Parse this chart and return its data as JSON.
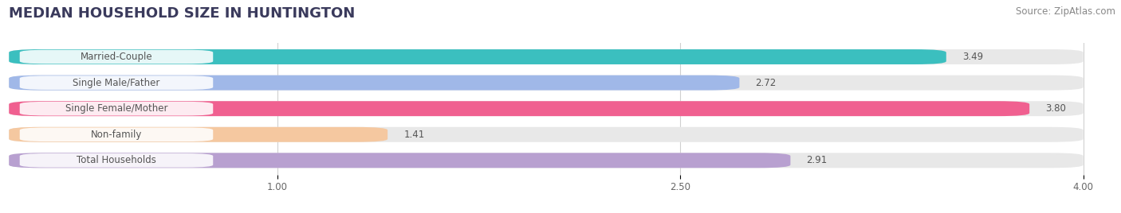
{
  "title": "MEDIAN HOUSEHOLD SIZE IN HUNTINGTON",
  "source": "Source: ZipAtlas.com",
  "categories": [
    "Married-Couple",
    "Single Male/Father",
    "Single Female/Mother",
    "Non-family",
    "Total Households"
  ],
  "values": [
    3.49,
    2.72,
    3.8,
    1.41,
    2.91
  ],
  "bar_colors": [
    "#3bbfbf",
    "#a0b8e8",
    "#f06090",
    "#f5c8a0",
    "#b8a0d0"
  ],
  "xlim_min": 0.0,
  "xlim_max": 4.0,
  "xticks": [
    1.0,
    2.5,
    4.0
  ],
  "background_color": "#ffffff",
  "bar_bg_color": "#e8e8e8",
  "title_color": "#3a3a5c",
  "source_color": "#888888",
  "label_color": "#555555",
  "value_color": "#555555",
  "title_fontsize": 13,
  "label_fontsize": 8.5,
  "value_fontsize": 8.5,
  "tick_fontsize": 8.5
}
